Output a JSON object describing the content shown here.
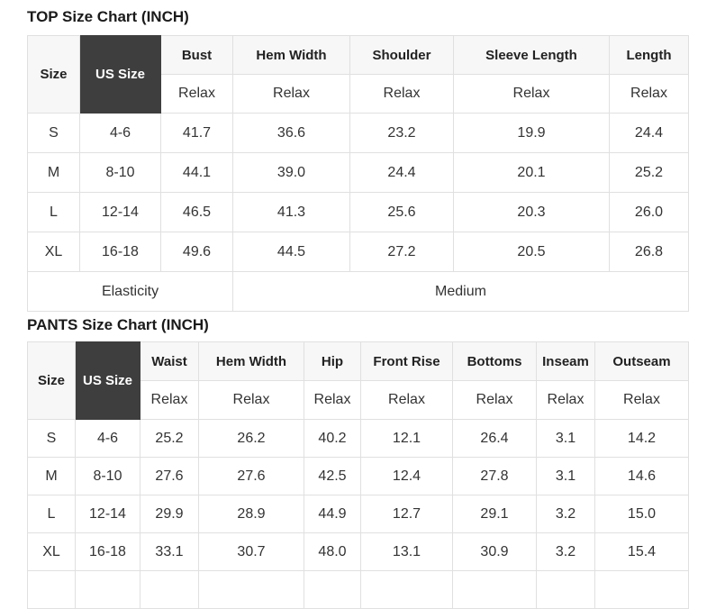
{
  "colors": {
    "header_bg": "#f7f7f7",
    "dark_cell_bg": "#3e3e3e",
    "dark_cell_text": "#ffffff",
    "border": "#e0e0e0",
    "body_text": "#333333",
    "title_text": "#1a1a1a"
  },
  "top_chart": {
    "title": "TOP Size Chart (INCH)",
    "columns": [
      {
        "label": "Size"
      },
      {
        "label": "US Size",
        "dark": true
      },
      {
        "label": "Bust",
        "sub": "Relax"
      },
      {
        "label": "Hem Width",
        "sub": "Relax"
      },
      {
        "label": "Shoulder",
        "sub": "Relax"
      },
      {
        "label": "Sleeve Length",
        "sub": "Relax"
      },
      {
        "label": "Length",
        "sub": "Relax"
      }
    ],
    "rows": [
      [
        "S",
        "4-6",
        "41.7",
        "36.6",
        "23.2",
        "19.9",
        "24.4"
      ],
      [
        "M",
        "8-10",
        "44.1",
        "39.0",
        "24.4",
        "20.1",
        "25.2"
      ],
      [
        "L",
        "12-14",
        "46.5",
        "41.3",
        "25.6",
        "20.3",
        "26.0"
      ],
      [
        "XL",
        "16-18",
        "49.6",
        "44.5",
        "27.2",
        "20.5",
        "26.8"
      ]
    ],
    "footer": {
      "label": "Elasticity",
      "value": "Medium",
      "label_span": 3,
      "value_span": 4
    }
  },
  "pants_chart": {
    "title": "PANTS Size Chart (INCH)",
    "columns": [
      {
        "label": "Size"
      },
      {
        "label": "US Size",
        "dark": true
      },
      {
        "label": "Waist",
        "sub": "Relax"
      },
      {
        "label": "Hem Width",
        "sub": "Relax"
      },
      {
        "label": "Hip",
        "sub": "Relax"
      },
      {
        "label": "Front Rise",
        "sub": "Relax"
      },
      {
        "label": "Bottoms",
        "sub": "Relax"
      },
      {
        "label": "Inseam",
        "sub": "Relax"
      },
      {
        "label": "Outseam",
        "sub": "Relax"
      }
    ],
    "rows": [
      [
        "S",
        "4-6",
        "25.2",
        "26.2",
        "40.2",
        "12.1",
        "26.4",
        "3.1",
        "14.2"
      ],
      [
        "M",
        "8-10",
        "27.6",
        "27.6",
        "42.5",
        "12.4",
        "27.8",
        "3.1",
        "14.6"
      ],
      [
        "L",
        "12-14",
        "29.9",
        "28.9",
        "44.9",
        "12.7",
        "29.1",
        "3.2",
        "15.0"
      ],
      [
        "XL",
        "16-18",
        "33.1",
        "30.7",
        "48.0",
        "13.1",
        "30.9",
        "3.2",
        "15.4"
      ]
    ],
    "clipped_empty_row": true
  }
}
